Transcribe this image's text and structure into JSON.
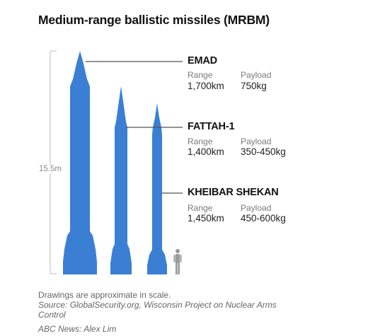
{
  "title": "Medium-range ballistic missiles (MRBM)",
  "height_label": "15.5m",
  "missiles": [
    {
      "name": "EMAD",
      "range_label": "Range",
      "range": "1,700km",
      "payload_label": "Payload",
      "payload": "750kg"
    },
    {
      "name": "FATTAH-1",
      "range_label": "Range",
      "range": "1,400km",
      "payload_label": "Payload",
      "payload": "350-450kg"
    },
    {
      "name": "KHEIBAR SHEKAN",
      "range_label": "Range",
      "range": "1,450km",
      "payload_label": "Payload",
      "payload": "450-600kg"
    }
  ],
  "footer": {
    "note": "Drawings are approximate in scale.",
    "source_line1": "Source: GlobalSecurity.org, Wisconsin Project on Nuclear Arms",
    "source_line2": "Control",
    "credit": "ABC News: Alex Lim"
  },
  "colors": {
    "missile": "#3a7fd4",
    "human": "#9a9a9a",
    "leader": "#555555",
    "scale": "#bdbdbd"
  }
}
